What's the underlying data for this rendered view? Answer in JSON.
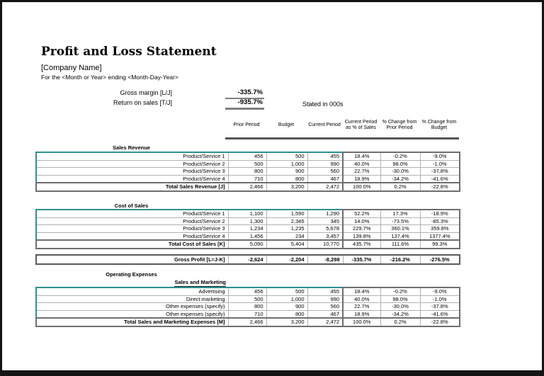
{
  "page": {
    "title": "Profit and Loss Statement",
    "company": "[Company Name]",
    "subtitle": "For the <Month or Year> ending <Month-Day-Year>",
    "stated_in": "Stated in 000s"
  },
  "summary": {
    "gross_margin_label": "Gross margin  [L/J]",
    "gross_margin_value": "-335.7%",
    "return_on_sales_label": "Return on sales  [T/J]",
    "return_on_sales_value": "-935.7%"
  },
  "columns": [
    "Prior Period",
    "Budget",
    "Current Period",
    "Current Period as % of Sales",
    "% Change from Prior Period",
    "% Change from Budget"
  ],
  "colors": {
    "accent_teal": "#2e9090",
    "grid_gray": "#b2b2b2",
    "heavy_gray": "#6e6e6e",
    "frame_black": "#141414"
  },
  "sections": [
    {
      "heading": "Sales Revenue",
      "rows": [
        {
          "label": "Product/Service 1",
          "values": [
            "456",
            "500",
            "455",
            "18.4%",
            "-0.2%",
            "-9.0%"
          ]
        },
        {
          "label": "Product/Service 2",
          "values": [
            "500",
            "1,000",
            "990",
            "40.0%",
            "98.0%",
            "-1.0%"
          ]
        },
        {
          "label": "Product/Service 3",
          "values": [
            "800",
            "900",
            "560",
            "22.7%",
            "-30.0%",
            "-37.8%"
          ]
        },
        {
          "label": "Product/Service 4",
          "values": [
            "710",
            "800",
            "467",
            "18.9%",
            "-34.2%",
            "-41.6%"
          ]
        },
        {
          "label": "Total Sales Revenue  [J]",
          "values": [
            "2,466",
            "3,200",
            "2,472",
            "100.0%",
            "0.2%",
            "-22.8%"
          ],
          "total": true
        }
      ]
    },
    {
      "heading": "Cost of Sales",
      "rows": [
        {
          "label": "Product/Service 1",
          "values": [
            "1,100",
            "1,590",
            "1,290",
            "52.2%",
            "17.3%",
            "-18.9%"
          ]
        },
        {
          "label": "Product/Service 2",
          "values": [
            "1,300",
            "2,345",
            "345",
            "14.0%",
            "-73.5%",
            "-85.3%"
          ]
        },
        {
          "label": "Product/Service 3",
          "values": [
            "1,234",
            "1,235",
            "5,678",
            "229.7%",
            "360.1%",
            "359.8%"
          ]
        },
        {
          "label": "Product/Service 4",
          "values": [
            "1,456",
            "234",
            "3,457",
            "139.8%",
            "137.4%",
            "1377.4%"
          ]
        },
        {
          "label": "Total Cost of Sales  [K]",
          "values": [
            "5,090",
            "5,404",
            "10,770",
            "435.7%",
            "111.6%",
            "99.3%"
          ],
          "total": true
        }
      ]
    }
  ],
  "gross_profit_rows": [
    {
      "label": "Gross Profit  [L=J-K]",
      "values": [
        "-2,624",
        "-2,204",
        "-8,298",
        "-335.7%",
        "-216.2%",
        "-276.5%"
      ],
      "total": true
    }
  ],
  "operating": {
    "heading": "Operating Expenses",
    "subheading": "Sales and Marketing",
    "rows": [
      {
        "label": "Advertising",
        "values": [
          "456",
          "500",
          "455",
          "18.4%",
          "-0.2%",
          "-9.0%"
        ]
      },
      {
        "label": "Direct marketing",
        "values": [
          "500",
          "1,000",
          "990",
          "40.0%",
          "98.0%",
          "-1.0%"
        ]
      },
      {
        "label": "Other expenses (specify)",
        "values": [
          "800",
          "900",
          "560",
          "22.7%",
          "-30.0%",
          "-37.8%"
        ]
      },
      {
        "label": "Other expenses (specify)",
        "values": [
          "710",
          "800",
          "467",
          "18.9%",
          "-34.2%",
          "-41.6%"
        ]
      },
      {
        "label": "Total Sales and Marketing Expenses  [M]",
        "values": [
          "2,466",
          "3,200",
          "2,472",
          "100.0%",
          "0.2%",
          "-22.8%"
        ],
        "total": true
      }
    ]
  }
}
